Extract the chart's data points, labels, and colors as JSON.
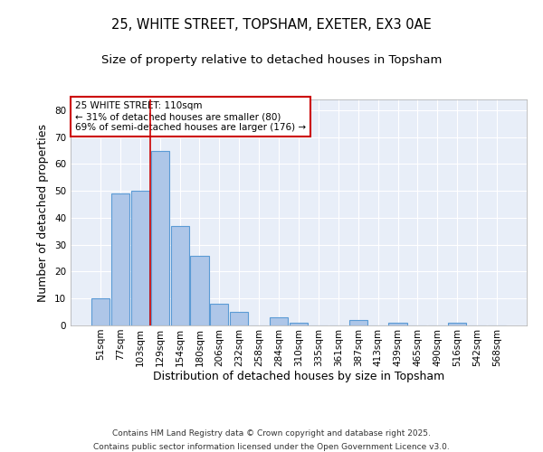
{
  "title1": "25, WHITE STREET, TOPSHAM, EXETER, EX3 0AE",
  "title2": "Size of property relative to detached houses in Topsham",
  "xlabel": "Distribution of detached houses by size in Topsham",
  "ylabel": "Number of detached properties",
  "categories": [
    "51sqm",
    "77sqm",
    "103sqm",
    "129sqm",
    "154sqm",
    "180sqm",
    "206sqm",
    "232sqm",
    "258sqm",
    "284sqm",
    "310sqm",
    "335sqm",
    "361sqm",
    "387sqm",
    "413sqm",
    "439sqm",
    "465sqm",
    "490sqm",
    "516sqm",
    "542sqm",
    "568sqm"
  ],
  "values": [
    10,
    49,
    50,
    65,
    37,
    26,
    8,
    5,
    0,
    3,
    1,
    0,
    0,
    2,
    0,
    1,
    0,
    0,
    1,
    0,
    0
  ],
  "bar_color": "#aec6e8",
  "bar_edge_color": "#5b9bd5",
  "background_color": "#e8eef8",
  "grid_color": "#ffffff",
  "vline_x": 2.5,
  "vline_color": "#cc0000",
  "annotation_text": "25 WHITE STREET: 110sqm\n← 31% of detached houses are smaller (80)\n69% of semi-detached houses are larger (176) →",
  "annotation_box_color": "#cc0000",
  "ylim": [
    0,
    84
  ],
  "yticks": [
    0,
    10,
    20,
    30,
    40,
    50,
    60,
    70,
    80
  ],
  "footnote1": "Contains HM Land Registry data © Crown copyright and database right 2025.",
  "footnote2": "Contains public sector information licensed under the Open Government Licence v3.0.",
  "title_fontsize": 10.5,
  "subtitle_fontsize": 9.5,
  "tick_fontsize": 7.5,
  "label_fontsize": 9,
  "annot_fontsize": 7.5
}
